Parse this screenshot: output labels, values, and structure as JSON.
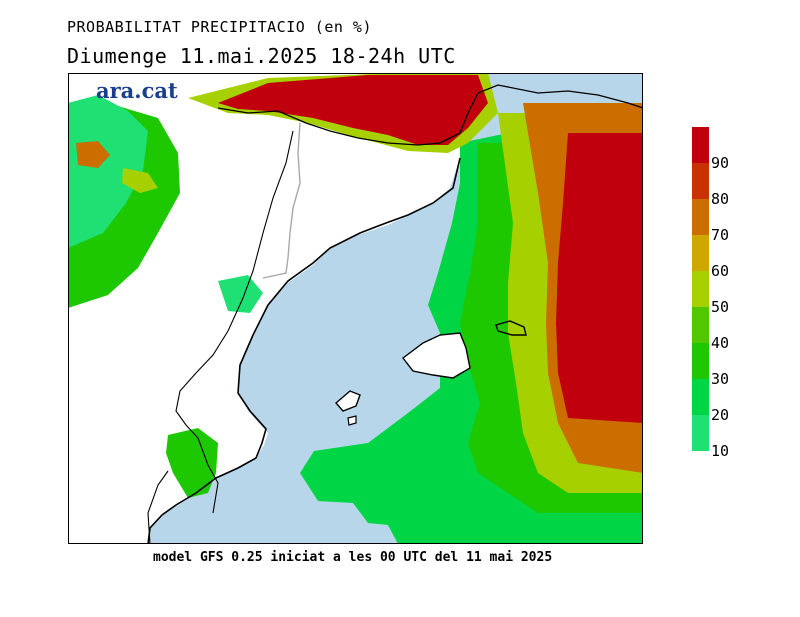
{
  "header": {
    "title": "PROBABILITAT PRECIPITACIO (en %)",
    "subtitle": "Diumenge  11.mai.2025  18-24h UTC"
  },
  "logo": {
    "text": "ara.cat"
  },
  "footer": {
    "text": "model GFS 0.25 iniciat a les 00 UTC del 11 mai 2025"
  },
  "legend": {
    "labels": [
      "90",
      "80",
      "70",
      "60",
      "50",
      "40",
      "30",
      "20",
      "10"
    ],
    "colors": [
      "#c0000c",
      "#c83200",
      "#cc6d00",
      "#cca800",
      "#a7d000",
      "#52c700",
      "#1ec800",
      "#00d545",
      "#1ee073"
    ]
  },
  "map_colors": {
    "sea": "#b8d6ea",
    "land_no_rain": "#ffffff",
    "coast": "#000000",
    "borders": "#a8a8a8"
  }
}
